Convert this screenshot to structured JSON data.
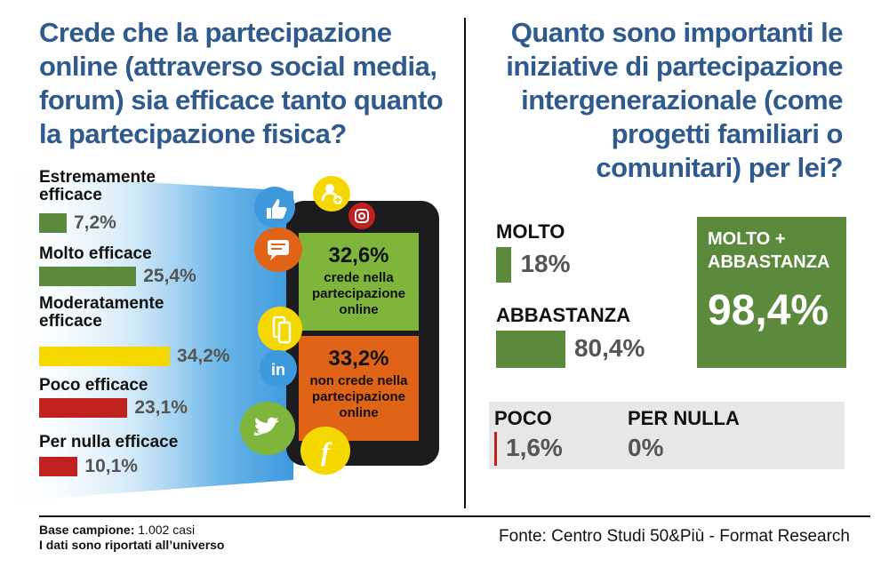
{
  "left": {
    "title": "Crede che la partecipazione online (attraverso social media, forum) sia efficace tanto quanto la partecipazione fisica?",
    "phone": {
      "top_pct": "32,6%",
      "top_text": "crede nella partecipazione online",
      "bottom_pct": "33,2%",
      "bottom_text": "non crede nella partecipazione online",
      "icons": [
        "thumbs-up-icon",
        "add-user-icon",
        "instagram-icon",
        "chat-icon",
        "mobile-icon",
        "linkedin-icon",
        "twitter-icon",
        "facebook-icon"
      ]
    }
  },
  "right": {
    "title": "Quanto sono importanti le iniziative di partecipazione intergenerazionale (come progetti familiari o comunitari) per lei?",
    "highlight_label": "MOLTO + ABBASTANZA",
    "highlight_value": "98,4%"
  },
  "footer": {
    "base_label": "Base campione:",
    "base_value": "1.002 casi",
    "note": "I dati sono riportati all’universo",
    "source": "Fonte: Centro Studi 50&Più - Format Research"
  },
  "colors": {
    "title": "#2e5a8e",
    "green": "#5b8a3c",
    "yellow": "#f5d800",
    "red": "#c0201e",
    "phone_green": "#7fb53a",
    "phone_orange": "#e06418",
    "glow": "#5aaee6"
  },
  "chart_data": [
    {
      "type": "bar",
      "orientation": "horizontal",
      "categories": [
        "Estremamente efficace",
        "Molto efficace",
        "Moderatamente efficace",
        "Poco efficace",
        "Per nulla efficace"
      ],
      "values": [
        7.2,
        25.4,
        34.2,
        23.1,
        10.1
      ],
      "value_labels": [
        "7,2%",
        "25,4%",
        "34,2%",
        "23,1%",
        "10,1%"
      ],
      "colors": [
        "#5b8a3c",
        "#5b8a3c",
        "#f5d800",
        "#c0201e",
        "#c0201e"
      ],
      "grid": false
    },
    {
      "type": "bar",
      "orientation": "horizontal",
      "categories": [
        "MOLTO",
        "ABBASTANZA",
        "POCO",
        "PER NULLA"
      ],
      "values": [
        18,
        80.4,
        1.6,
        0
      ],
      "value_labels": [
        "18%",
        "80,4%",
        "1,6%",
        "0%"
      ],
      "colors": [
        "#5b8a3c",
        "#5b8a3c",
        "#c0201e",
        "#c0201e"
      ],
      "grid": false
    }
  ]
}
